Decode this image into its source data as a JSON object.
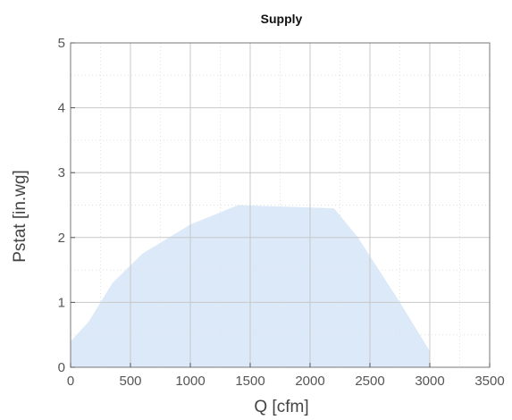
{
  "chart_data": {
    "type": "area",
    "title": "Supply",
    "xlabel": "Q [cfm]",
    "ylabel": "Pstat [in.wg]",
    "xlim": [
      0,
      3500
    ],
    "ylim": [
      0,
      5
    ],
    "x_ticks": [
      "0",
      "500",
      "1000",
      "1500",
      "2000",
      "2500",
      "3000",
      "3500"
    ],
    "y_ticks": [
      "0",
      "1",
      "2",
      "3",
      "4",
      "5"
    ],
    "grid": true,
    "fill_color": "#dbe9f8",
    "grid_color": "#c8c8c8",
    "area_outline": [
      {
        "x": 0,
        "y": 0.4
      },
      {
        "x": 150,
        "y": 0.7
      },
      {
        "x": 350,
        "y": 1.3
      },
      {
        "x": 600,
        "y": 1.75
      },
      {
        "x": 1000,
        "y": 2.2
      },
      {
        "x": 1400,
        "y": 2.5
      },
      {
        "x": 2200,
        "y": 2.45
      },
      {
        "x": 2400,
        "y": 2.0
      },
      {
        "x": 2750,
        "y": 1.0
      },
      {
        "x": 3000,
        "y": 0.25
      },
      {
        "x": 3000,
        "y": 0
      },
      {
        "x": 0,
        "y": 0
      }
    ]
  }
}
